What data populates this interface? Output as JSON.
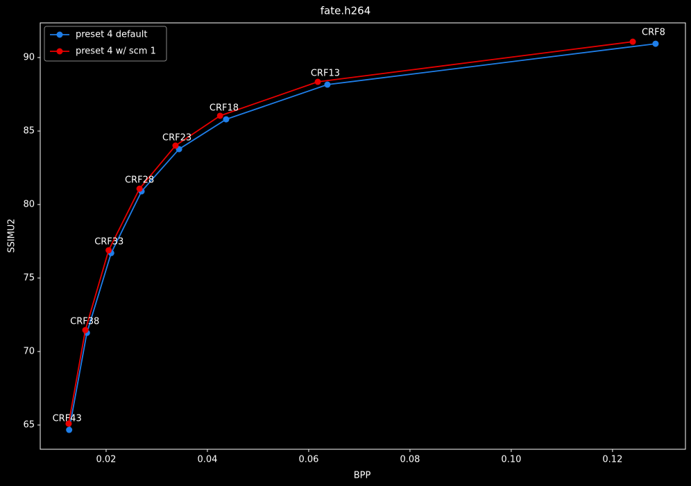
{
  "chart_data": {
    "type": "line",
    "title": "fate.h264",
    "x_label": "BPP",
    "y_label": "SSIMU2",
    "series": [
      {
        "name": "preset 4 default",
        "color": "#1f7fea",
        "x": [
          0.0127,
          0.0162,
          0.021,
          0.027,
          0.0344,
          0.0437,
          0.0637,
          0.1285
        ],
        "values": [
          64.67,
          71.27,
          76.7,
          80.9,
          83.77,
          85.8,
          88.16,
          90.94
        ]
      },
      {
        "name": "preset 4 w/ scm 1",
        "color": "#e80000",
        "x": [
          0.0126,
          0.0159,
          0.0205,
          0.0266,
          0.0337,
          0.0425,
          0.0618,
          0.124
        ],
        "values": [
          65.09,
          71.46,
          76.89,
          81.08,
          84.01,
          86.04,
          88.35,
          91.08
        ]
      }
    ],
    "annotations": [
      "CRF43",
      "CRF38",
      "CRF33",
      "CRF28",
      "CRF23",
      "CRF18",
      "CRF13",
      "CRF8"
    ],
    "xlim": [
      0.00699,
      0.1344
    ],
    "ylim": [
      63.35,
      92.36
    ],
    "xticks": [
      0.02,
      0.04,
      0.06,
      0.08,
      {
        "value": 0.1,
        "label": "0.10"
      },
      0.12
    ],
    "yticks": [
      65,
      70,
      75,
      80,
      85,
      90
    ],
    "legend": "upper left",
    "grid": false
  }
}
